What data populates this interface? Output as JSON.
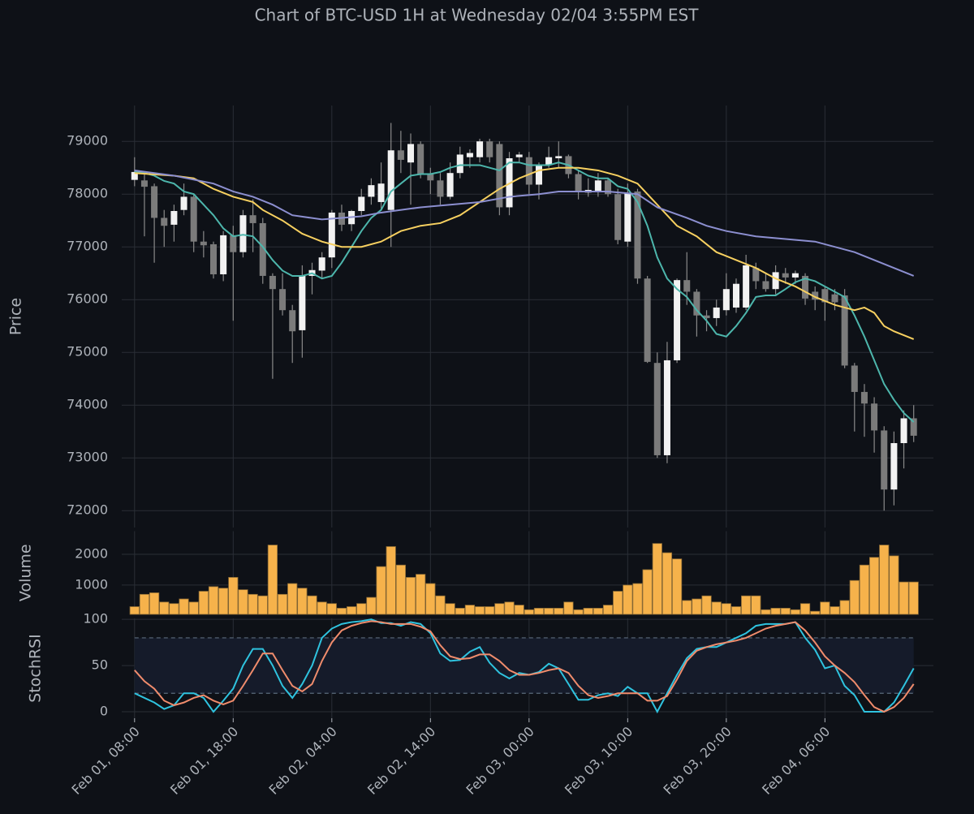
{
  "chart_data": [
    {
      "type": "candlestick",
      "title": "Chart of BTC-USD 1H at Wednesday 02/04 3:55PM EST",
      "ylabel": "Price",
      "xlim": [
        -1.3,
        81.0
      ],
      "ylim": [
        71680,
        79680
      ],
      "yticks": [
        72000,
        73000,
        74000,
        75000,
        76000,
        77000,
        78000,
        79000
      ],
      "grid": true,
      "up_color": "#f2f2f2",
      "down_color": "#7b7b7b",
      "wick_color": "#8a8a8a",
      "x": [
        0,
        1,
        2,
        3,
        4,
        5,
        6,
        7,
        8,
        9,
        10,
        11,
        12,
        13,
        14,
        15,
        16,
        17,
        18,
        19,
        20,
        21,
        22,
        23,
        24,
        25,
        26,
        27,
        28,
        29,
        30,
        31,
        32,
        33,
        34,
        35,
        36,
        37,
        38,
        39,
        40,
        41,
        42,
        43,
        44,
        45,
        46,
        47,
        48,
        49,
        50,
        51,
        52,
        53,
        54,
        55,
        56,
        57,
        58,
        59,
        60,
        61,
        62,
        63,
        64,
        65,
        66,
        67,
        68,
        69,
        70,
        71,
        72,
        73,
        74,
        75,
        76,
        77,
        78,
        79
      ],
      "open": [
        78270,
        78260,
        78150,
        77550,
        77420,
        77700,
        77950,
        77100,
        77050,
        76480,
        77220,
        76900,
        77600,
        77450,
        76450,
        76200,
        75800,
        75420,
        76450,
        76550,
        76800,
        77650,
        77430,
        77680,
        77950,
        77850,
        77700,
        78830,
        78600,
        78950,
        78380,
        78260,
        77950,
        78400,
        78700,
        78700,
        79000,
        78950,
        77750,
        78700,
        78700,
        78180,
        78550,
        78680,
        78720,
        78380,
        78030,
        78060,
        78260,
        78000,
        77100,
        78050,
        76400,
        74800,
        73050,
        74850,
        76370,
        76150,
        75700,
        75650,
        75800,
        75850,
        75850,
        76600,
        76350,
        76200,
        76500,
        76420,
        76450,
        76150,
        76200,
        76100,
        76080,
        74750,
        74250,
        74030,
        73520,
        72400,
        73280,
        73750
      ],
      "high": [
        78700,
        78400,
        78200,
        77700,
        77800,
        78200,
        78000,
        77300,
        77100,
        77300,
        77400,
        77700,
        77900,
        77550,
        76500,
        76500,
        75900,
        76650,
        76700,
        76900,
        77700,
        77800,
        77700,
        78100,
        78300,
        78600,
        79350,
        79200,
        79150,
        79000,
        78500,
        78400,
        78600,
        78900,
        78850,
        79050,
        79050,
        79000,
        78800,
        78800,
        78800,
        78600,
        78900,
        79000,
        78750,
        78450,
        78300,
        78400,
        78300,
        78100,
        78200,
        78100,
        76450,
        75000,
        75200,
        76400,
        76900,
        76200,
        75800,
        76000,
        76500,
        76400,
        76850,
        76700,
        76500,
        76650,
        76600,
        76550,
        76500,
        76250,
        76250,
        76200,
        76200,
        74800,
        74400,
        74150,
        73600,
        73500,
        73900,
        74000
      ],
      "low": [
        78150,
        77200,
        76700,
        77000,
        77100,
        77600,
        76900,
        76800,
        76400,
        76350,
        75600,
        76800,
        76900,
        76300,
        74500,
        75700,
        74800,
        74900,
        76100,
        76400,
        76600,
        77300,
        77300,
        77600,
        77800,
        77700,
        77000,
        78400,
        77800,
        78300,
        78000,
        77800,
        77900,
        78300,
        78500,
        78600,
        78600,
        77600,
        77600,
        78600,
        78000,
        77900,
        78500,
        78500,
        78300,
        77900,
        77950,
        77950,
        77950,
        77050,
        77000,
        76300,
        74800,
        73000,
        72900,
        74800,
        75900,
        75300,
        75400,
        75500,
        75700,
        75750,
        75800,
        76200,
        76150,
        76100,
        76300,
        76300,
        75900,
        75800,
        75600,
        75800,
        74700,
        73500,
        73400,
        73100,
        72000,
        72100,
        72800,
        73300
      ],
      "close": [
        78420,
        78140,
        77550,
        77400,
        77680,
        77950,
        77100,
        77030,
        76480,
        77220,
        76900,
        77600,
        77450,
        76450,
        76200,
        75800,
        75400,
        76450,
        76560,
        76800,
        77650,
        77420,
        77680,
        77950,
        78170,
        78200,
        78830,
        78650,
        78950,
        78380,
        78260,
        77950,
        78400,
        78750,
        78780,
        79000,
        78700,
        77750,
        78680,
        78750,
        78180,
        78550,
        78700,
        78720,
        78380,
        78050,
        78080,
        78260,
        78000,
        77130,
        78020,
        76400,
        74820,
        73050,
        74850,
        76370,
        76150,
        75700,
        75650,
        75850,
        76200,
        76300,
        76650,
        76350,
        76200,
        76520,
        76420,
        76500,
        76020,
        76000,
        75950,
        75950,
        74750,
        74250,
        74030,
        73520,
        72400,
        73280,
        73750,
        73420
      ],
      "series": [
        {
          "color": "#4db6ac",
          "x": [
            0,
            1,
            2,
            3,
            4,
            5,
            6,
            7,
            8,
            9,
            10,
            11,
            12,
            13,
            14,
            15,
            16,
            17,
            18,
            19,
            20,
            21,
            22,
            23,
            24,
            25,
            26,
            27,
            28,
            29,
            30,
            31,
            32,
            33,
            34,
            35,
            36,
            37,
            38,
            39,
            40,
            41,
            42,
            43,
            44,
            45,
            46,
            47,
            48,
            49,
            50,
            51,
            52,
            53,
            54,
            55,
            56,
            57,
            58,
            59,
            60,
            61,
            62,
            63,
            64,
            65,
            66,
            67,
            68,
            69,
            70,
            71,
            72,
            73,
            74,
            75,
            76,
            77,
            78,
            79
          ],
          "values": [
            78430,
            78400,
            78350,
            78250,
            78200,
            78050,
            78000,
            77800,
            77600,
            77350,
            77200,
            77230,
            77200,
            77000,
            76750,
            76550,
            76450,
            76450,
            76500,
            76400,
            76450,
            76700,
            77000,
            77300,
            77550,
            77700,
            78050,
            78200,
            78350,
            78380,
            78380,
            78420,
            78500,
            78550,
            78550,
            78550,
            78500,
            78450,
            78600,
            78600,
            78550,
            78550,
            78550,
            78600,
            78550,
            78450,
            78350,
            78300,
            78300,
            78150,
            78100,
            77850,
            77400,
            76800,
            76400,
            76200,
            76050,
            75800,
            75600,
            75350,
            75300,
            75500,
            75750,
            76050,
            76080,
            76080,
            76200,
            76330,
            76400,
            76350,
            76250,
            76150,
            76050,
            75700,
            75300,
            74850,
            74400,
            74100,
            73850,
            73680
          ]
        },
        {
          "color": "#f7d060",
          "x": [
            0,
            4,
            6,
            8,
            10,
            12,
            13,
            15,
            17,
            19,
            21,
            23,
            25,
            27,
            29,
            31,
            33,
            35,
            37,
            39,
            41,
            43,
            45,
            47,
            49,
            51,
            53,
            55,
            57,
            59,
            61,
            63,
            65,
            67,
            69,
            71,
            73,
            74,
            75,
            76,
            77,
            79
          ],
          "values": [
            78400,
            78350,
            78300,
            78100,
            77950,
            77850,
            77700,
            77500,
            77250,
            77100,
            77000,
            77000,
            77100,
            77300,
            77400,
            77450,
            77600,
            77850,
            78100,
            78300,
            78450,
            78500,
            78500,
            78450,
            78350,
            78200,
            77800,
            77400,
            77200,
            76900,
            76750,
            76600,
            76400,
            76250,
            76050,
            75900,
            75800,
            75850,
            75750,
            75500,
            75400,
            75250
          ]
        },
        {
          "color": "#8c8fd0",
          "x": [
            0,
            4,
            8,
            10,
            12,
            14,
            16,
            19,
            21,
            23,
            25,
            29,
            32,
            35,
            38,
            41,
            43,
            45,
            48,
            51,
            53,
            56,
            58,
            60,
            63,
            66,
            69,
            71,
            73,
            75,
            77,
            79
          ],
          "values": [
            78450,
            78350,
            78200,
            78050,
            77950,
            77800,
            77600,
            77520,
            77550,
            77580,
            77650,
            77750,
            77800,
            77850,
            77950,
            78000,
            78050,
            78050,
            78050,
            78000,
            77750,
            77550,
            77400,
            77300,
            77200,
            77150,
            77100,
            77000,
            76900,
            76750,
            76600,
            76450
          ]
        }
      ]
    },
    {
      "type": "bar",
      "ylabel": "Volume",
      "xlim": [
        -1.3,
        81.0
      ],
      "ylim": [
        50,
        2750
      ],
      "yticks": [
        1000,
        2000
      ],
      "grid": true,
      "color": "#f6b24b",
      "edge_color": "#8a6a35",
      "x": [
        0,
        1,
        2,
        3,
        4,
        5,
        6,
        7,
        8,
        9,
        10,
        11,
        12,
        13,
        14,
        15,
        16,
        17,
        18,
        19,
        20,
        21,
        22,
        23,
        24,
        25,
        26,
        27,
        28,
        29,
        30,
        31,
        32,
        33,
        34,
        35,
        36,
        37,
        38,
        39,
        40,
        41,
        42,
        43,
        44,
        45,
        46,
        47,
        48,
        49,
        50,
        51,
        52,
        53,
        54,
        55,
        56,
        57,
        58,
        59,
        60,
        61,
        62,
        63,
        64,
        65,
        66,
        67,
        68,
        69,
        70,
        71,
        72,
        73,
        74,
        75,
        76,
        77,
        78,
        79
      ],
      "values": [
        300,
        700,
        750,
        450,
        400,
        550,
        450,
        800,
        950,
        900,
        1250,
        850,
        700,
        650,
        2300,
        700,
        1050,
        900,
        650,
        450,
        400,
        250,
        300,
        400,
        600,
        1600,
        2250,
        1650,
        1250,
        1350,
        1050,
        650,
        400,
        250,
        350,
        300,
        300,
        400,
        450,
        350,
        200,
        250,
        250,
        250,
        450,
        200,
        250,
        250,
        350,
        800,
        1000,
        1050,
        1500,
        2350,
        2050,
        1850,
        500,
        550,
        650,
        450,
        400,
        300,
        650,
        650,
        200,
        250,
        250,
        200,
        400,
        150,
        450,
        300,
        500,
        1150,
        1650,
        1900,
        2300,
        1950,
        1100,
        1100
      ]
    },
    {
      "type": "line",
      "ylabel": "StochRSI",
      "xlim": [
        -1.3,
        81.0
      ],
      "ylim": [
        -7,
        101
      ],
      "yticks": [
        0,
        50,
        100
      ],
      "grid": true,
      "band": [
        20,
        80
      ],
      "band_color": "#151b2a",
      "band_line_color": "#5b6b7c",
      "xticks": [
        {
          "value": 0,
          "label": "Feb 01, 08:00"
        },
        {
          "value": 10,
          "label": "Feb 01, 18:00"
        },
        {
          "value": 20,
          "label": "Feb 02, 04:00"
        },
        {
          "value": 30,
          "label": "Feb 02, 14:00"
        },
        {
          "value": 40,
          "label": "Feb 03, 00:00"
        },
        {
          "value": 50,
          "label": "Feb 03, 10:00"
        },
        {
          "value": 60,
          "label": "Feb 03, 20:00"
        },
        {
          "value": 70,
          "label": "Feb 04, 06:00"
        }
      ],
      "x": [
        0,
        1,
        2,
        3,
        4,
        5,
        6,
        7,
        8,
        9,
        10,
        11,
        12,
        13,
        14,
        15,
        16,
        17,
        18,
        19,
        20,
        21,
        22,
        23,
        24,
        25,
        26,
        27,
        28,
        29,
        30,
        31,
        32,
        33,
        34,
        35,
        36,
        37,
        38,
        39,
        40,
        41,
        42,
        43,
        44,
        45,
        46,
        47,
        48,
        49,
        50,
        51,
        52,
        53,
        54,
        55,
        56,
        57,
        58,
        59,
        60,
        61,
        62,
        63,
        64,
        65,
        66,
        67,
        68,
        69,
        70,
        71,
        72,
        73,
        74,
        75,
        76,
        77,
        78,
        79
      ],
      "series": [
        {
          "color": "#2fc3df",
          "values": [
            20,
            15,
            10,
            3,
            7,
            20,
            20,
            15,
            0,
            12,
            25,
            50,
            68,
            68,
            50,
            28,
            15,
            30,
            50,
            80,
            90,
            95,
            97,
            98,
            100,
            96,
            96,
            93,
            97,
            95,
            85,
            63,
            55,
            56,
            65,
            70,
            53,
            42,
            36,
            42,
            40,
            43,
            52,
            47,
            30,
            13,
            13,
            18,
            20,
            17,
            27,
            20,
            20,
            0,
            20,
            40,
            58,
            68,
            70,
            70,
            75,
            80,
            85,
            93,
            95,
            95,
            95,
            97,
            80,
            67,
            47,
            50,
            28,
            18,
            0,
            0,
            0,
            10,
            28,
            47
          ]
        },
        {
          "color": "#f08c6c",
          "values": [
            45,
            33,
            25,
            12,
            7,
            10,
            15,
            18,
            12,
            8,
            12,
            28,
            45,
            63,
            63,
            45,
            28,
            22,
            30,
            55,
            75,
            88,
            93,
            96,
            98,
            97,
            95,
            95,
            95,
            92,
            87,
            72,
            60,
            57,
            58,
            62,
            62,
            55,
            45,
            40,
            40,
            42,
            45,
            47,
            42,
            28,
            18,
            15,
            17,
            20,
            20,
            20,
            12,
            12,
            17,
            35,
            55,
            66,
            70,
            73,
            75,
            77,
            80,
            85,
            90,
            93,
            95,
            97,
            88,
            75,
            60,
            50,
            42,
            32,
            18,
            5,
            0,
            5,
            15,
            30
          ]
        }
      ]
    }
  ]
}
